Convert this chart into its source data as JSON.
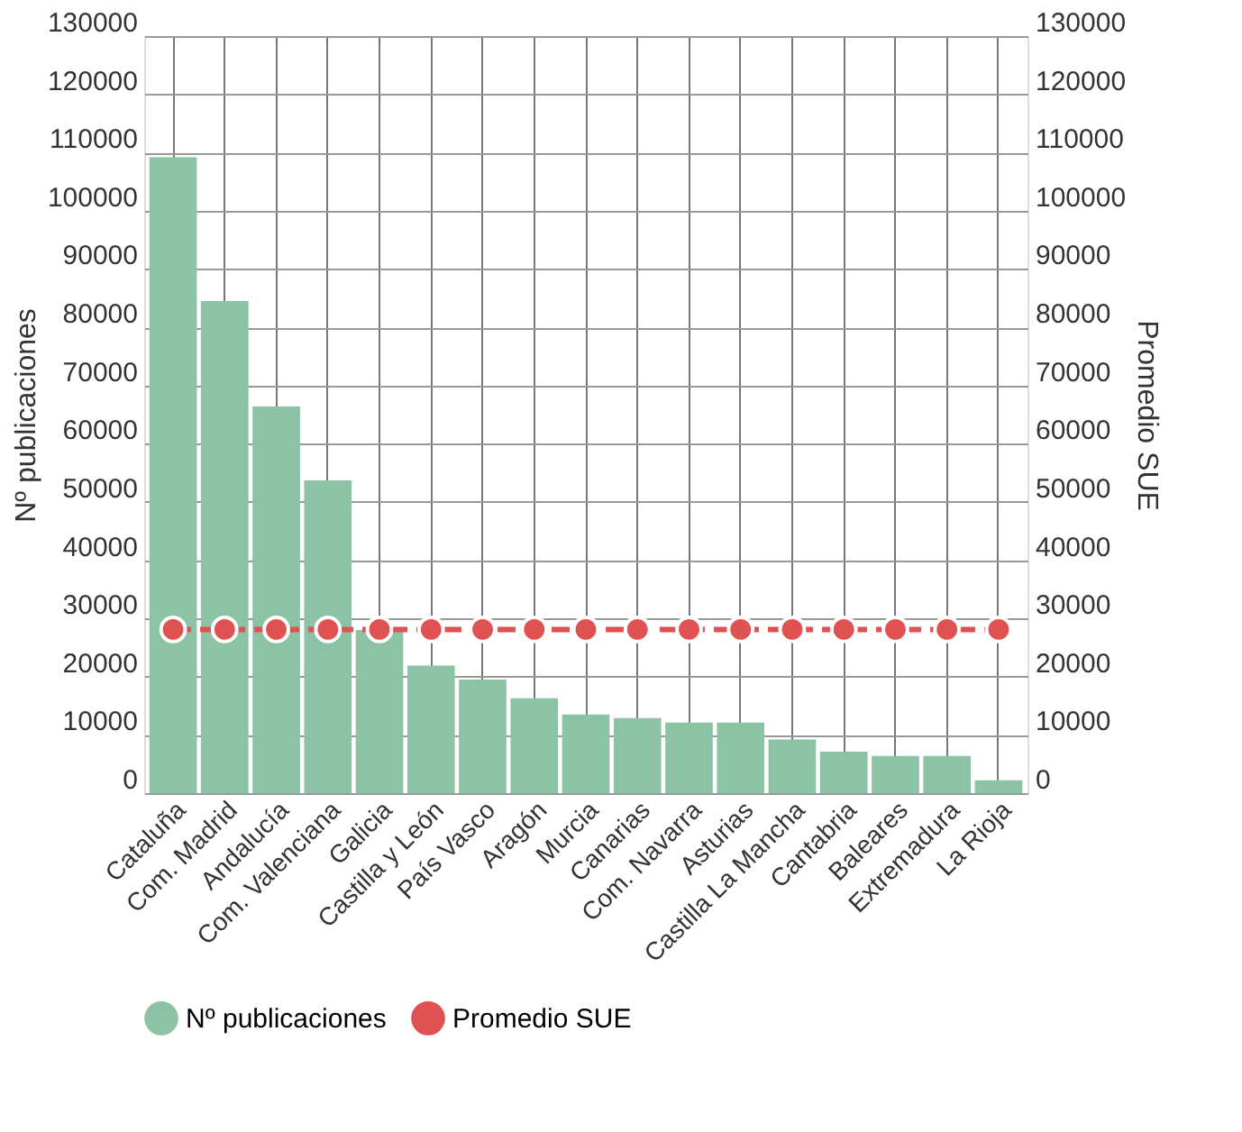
{
  "chart_data": {
    "type": "bar",
    "ylabel": "Nº publicaciones",
    "y2label": "Promedio SUE",
    "categories": [
      "Cataluña",
      "Com. Madrid",
      "Andalucía",
      "Com. Valenciana",
      "Galicia",
      "Castilla y León",
      "País Vasco",
      "Aragón",
      "Murcia",
      "Canarias",
      "Com. Navarra",
      "Asturias",
      "Castilla La Mancha",
      "Cantabria",
      "Baleares",
      "Extremadura",
      "La Rioja"
    ],
    "series": [
      {
        "name": "Nº publicaciones",
        "color": "#8cc3a5",
        "values": [
          109200,
          84500,
          66400,
          53700,
          28000,
          21900,
          19500,
          16300,
          13500,
          12900,
          12100,
          12100,
          9200,
          7100,
          6400,
          6400,
          2200
        ]
      },
      {
        "name": "Promedio SUE",
        "color": "#e05252",
        "type": "line",
        "axis": "y2",
        "marker": "circle",
        "line_style": "dashed",
        "values": [
          28100,
          28100,
          28100,
          28100,
          28100,
          28100,
          28100,
          28100,
          28100,
          28100,
          28100,
          28100,
          28100,
          28100,
          28100,
          28100,
          28100
        ]
      }
    ],
    "ylim": [
      0,
      130000
    ],
    "yticks": [
      0,
      10000,
      20000,
      30000,
      40000,
      50000,
      60000,
      70000,
      80000,
      90000,
      100000,
      110000,
      120000,
      130000
    ],
    "y2lim": [
      0,
      130000
    ],
    "y2ticks": [
      0,
      10000,
      20000,
      30000,
      40000,
      50000,
      60000,
      70000,
      80000,
      90000,
      100000,
      110000,
      120000,
      130000
    ],
    "grid": true,
    "legend": "bottom"
  }
}
